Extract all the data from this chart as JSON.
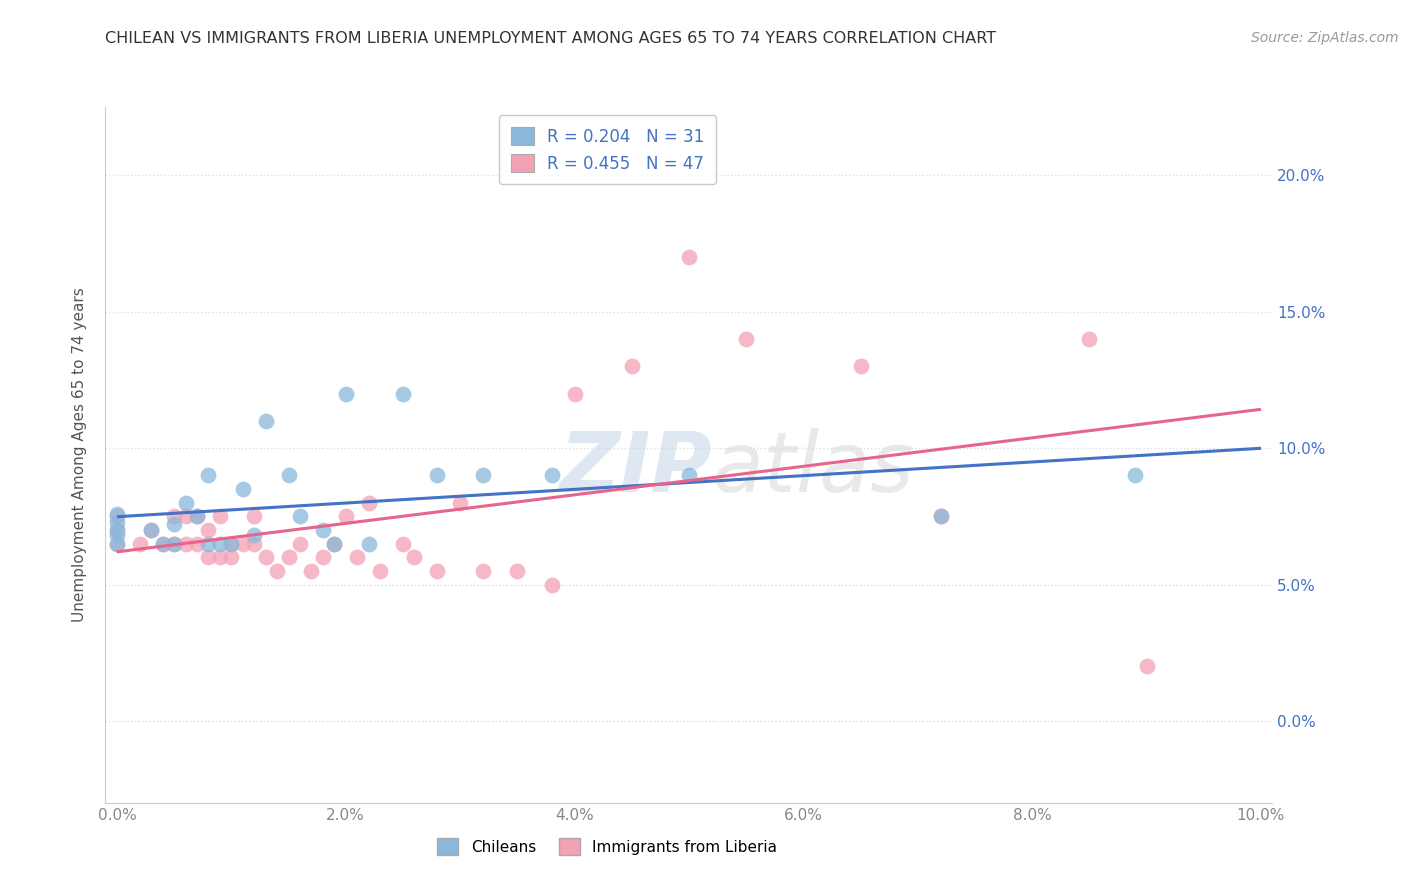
{
  "title": "CHILEAN VS IMMIGRANTS FROM LIBERIA UNEMPLOYMENT AMONG AGES 65 TO 74 YEARS CORRELATION CHART",
  "source": "Source: ZipAtlas.com",
  "ylabel": "Unemployment Among Ages 65 to 74 years",
  "xlabel": "",
  "watermark": "ZIPatlas",
  "xlim": [
    -0.001,
    0.101
  ],
  "ylim": [
    -0.03,
    0.225
  ],
  "xticks": [
    0.0,
    0.02,
    0.04,
    0.06,
    0.08,
    0.1
  ],
  "xtick_labels": [
    "0.0%",
    "2.0%",
    "4.0%",
    "6.0%",
    "8.0%",
    "10.0%"
  ],
  "yticks": [
    0.0,
    0.05,
    0.1,
    0.15,
    0.2
  ],
  "ytick_labels": [
    "0.0%",
    "5.0%",
    "10.0%",
    "15.0%",
    "20.0%"
  ],
  "chilean_color": "#89b8dc",
  "liberia_color": "#f4a0b5",
  "chilean_line_color": "#4472c4",
  "liberia_line_color": "#e8648a",
  "chilean_R": 0.204,
  "chilean_N": 31,
  "liberia_R": 0.455,
  "liberia_N": 47,
  "chilean_x": [
    0.0,
    0.0,
    0.0,
    0.0,
    0.0,
    0.003,
    0.004,
    0.005,
    0.005,
    0.006,
    0.007,
    0.008,
    0.008,
    0.009,
    0.01,
    0.011,
    0.012,
    0.013,
    0.015,
    0.016,
    0.018,
    0.019,
    0.02,
    0.022,
    0.025,
    0.028,
    0.032,
    0.038,
    0.05,
    0.072,
    0.089
  ],
  "chilean_y": [
    0.065,
    0.068,
    0.07,
    0.073,
    0.076,
    0.07,
    0.065,
    0.065,
    0.072,
    0.08,
    0.075,
    0.065,
    0.09,
    0.065,
    0.065,
    0.085,
    0.068,
    0.11,
    0.09,
    0.075,
    0.07,
    0.065,
    0.12,
    0.065,
    0.12,
    0.09,
    0.09,
    0.09,
    0.09,
    0.075,
    0.09
  ],
  "liberia_x": [
    0.0,
    0.0,
    0.0,
    0.002,
    0.003,
    0.004,
    0.005,
    0.005,
    0.006,
    0.006,
    0.007,
    0.007,
    0.008,
    0.008,
    0.009,
    0.009,
    0.01,
    0.01,
    0.011,
    0.012,
    0.012,
    0.013,
    0.014,
    0.015,
    0.016,
    0.017,
    0.018,
    0.019,
    0.02,
    0.021,
    0.022,
    0.023,
    0.025,
    0.026,
    0.028,
    0.03,
    0.032,
    0.035,
    0.038,
    0.04,
    0.045,
    0.05,
    0.055,
    0.065,
    0.072,
    0.085,
    0.09
  ],
  "liberia_y": [
    0.065,
    0.07,
    0.075,
    0.065,
    0.07,
    0.065,
    0.065,
    0.075,
    0.065,
    0.075,
    0.065,
    0.075,
    0.06,
    0.07,
    0.06,
    0.075,
    0.065,
    0.06,
    0.065,
    0.065,
    0.075,
    0.06,
    0.055,
    0.06,
    0.065,
    0.055,
    0.06,
    0.065,
    0.075,
    0.06,
    0.08,
    0.055,
    0.065,
    0.06,
    0.055,
    0.08,
    0.055,
    0.055,
    0.05,
    0.12,
    0.13,
    0.17,
    0.14,
    0.13,
    0.075,
    0.14,
    0.02
  ],
  "background_color": "#ffffff",
  "grid_color": "#dddddd"
}
